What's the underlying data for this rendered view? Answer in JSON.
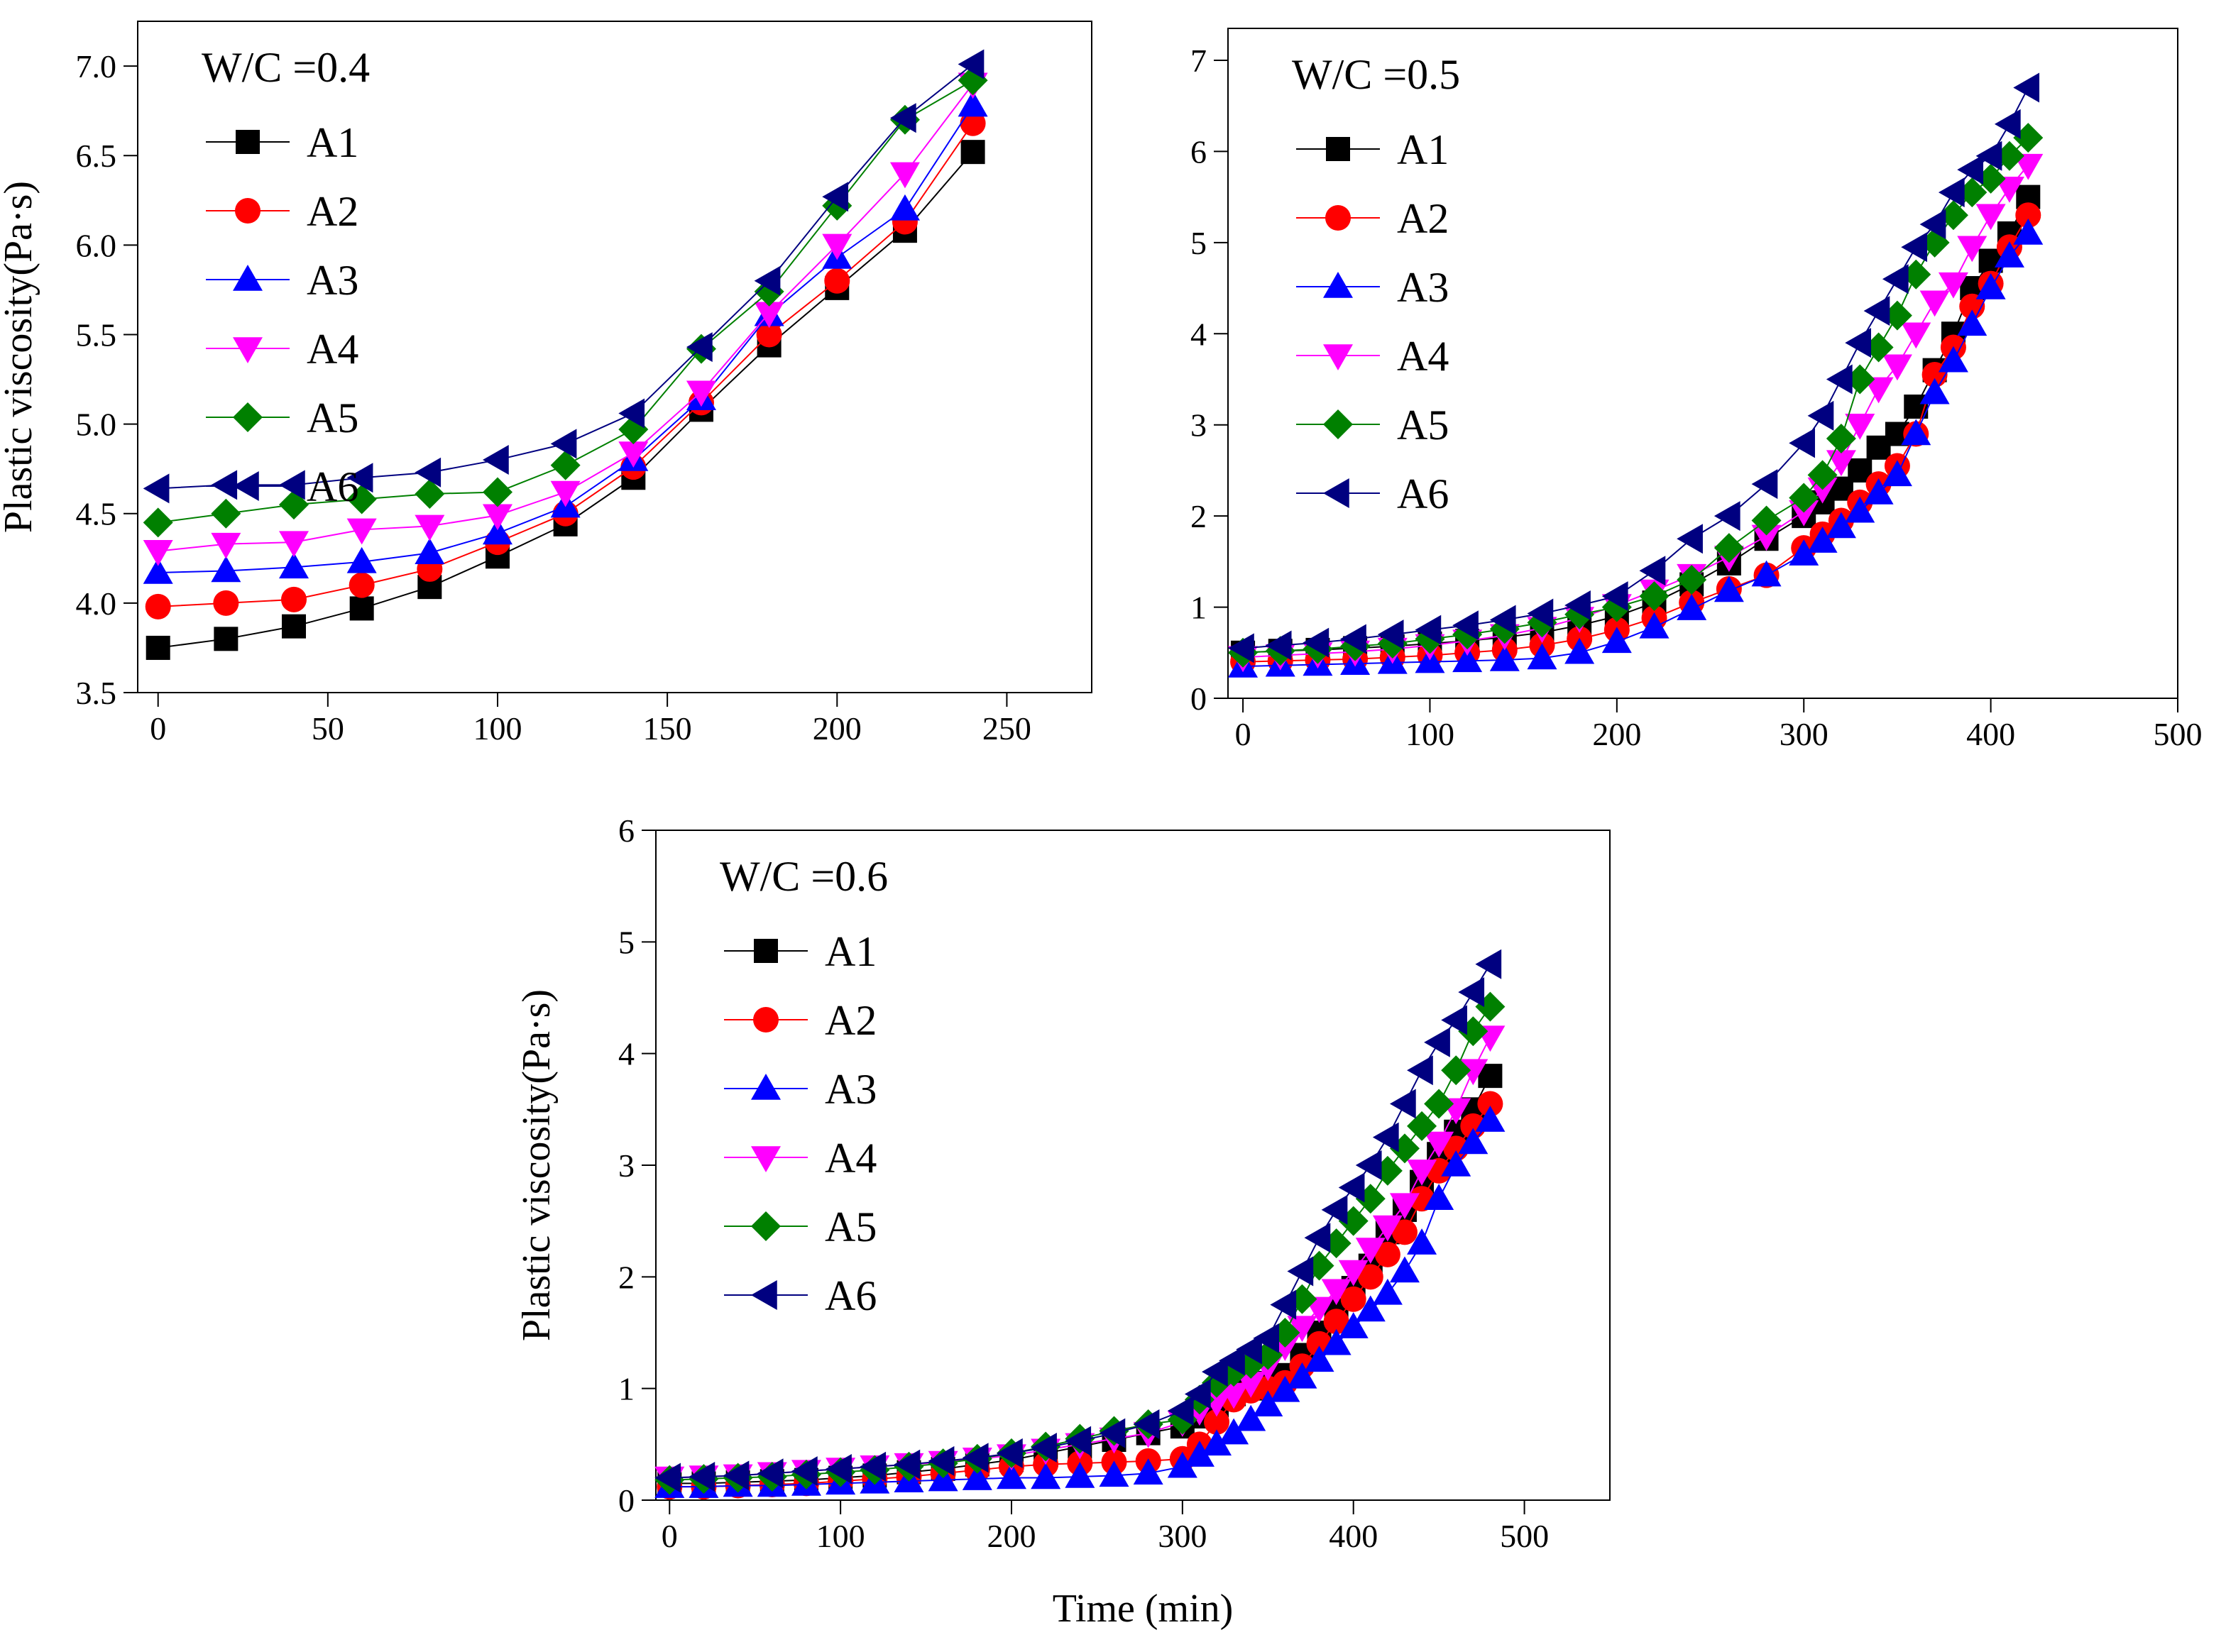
{
  "figure": {
    "shared_xlabel": "Time (min)"
  },
  "chart_data": [
    {
      "type": "line",
      "title": "W/C =0.4",
      "xlabel": "",
      "ylabel": "Plastic viscosity(Pa·s)",
      "xlim": [
        -6,
        275
      ],
      "ylim": [
        3.5,
        7.25
      ],
      "xticks": [
        0,
        50,
        100,
        150,
        200,
        250
      ],
      "yticks": [
        3.5,
        4.0,
        4.5,
        5.0,
        5.5,
        6.0,
        6.5,
        7.0
      ],
      "ytick_labels": [
        "3.5",
        "4.0",
        "4.5",
        "5.0",
        "5.5",
        "6.0",
        "6.5",
        "7.0"
      ],
      "legend_position": "top-left",
      "x": [
        0,
        20,
        40,
        60,
        80,
        100,
        120,
        140,
        160,
        180,
        200,
        220,
        240
      ],
      "series": [
        {
          "name": "A1",
          "color": "#000000",
          "marker": "square",
          "values": [
            3.75,
            3.8,
            3.87,
            3.97,
            4.09,
            4.26,
            4.44,
            4.7,
            5.08,
            5.44,
            5.76,
            6.08,
            6.52
          ]
        },
        {
          "name": "A2",
          "color": "#ff0000",
          "marker": "circle",
          "values": [
            3.98,
            4.0,
            4.02,
            4.1,
            4.19,
            4.34,
            4.5,
            4.76,
            5.12,
            5.5,
            5.8,
            6.13,
            6.68
          ]
        },
        {
          "name": "A3",
          "color": "#0000ff",
          "marker": "triangle-up",
          "values": [
            4.17,
            4.18,
            4.2,
            4.23,
            4.28,
            4.39,
            4.54,
            4.8,
            5.14,
            5.61,
            5.93,
            6.2,
            6.78
          ]
        },
        {
          "name": "A4",
          "color": "#ff00ff",
          "marker": "triangle-down",
          "values": [
            4.29,
            4.33,
            4.34,
            4.41,
            4.43,
            4.49,
            4.62,
            4.84,
            5.18,
            5.62,
            6.0,
            6.4,
            6.9
          ]
        },
        {
          "name": "A5",
          "color": "#008000",
          "marker": "diamond",
          "values": [
            4.45,
            4.5,
            4.55,
            4.58,
            4.61,
            4.62,
            4.77,
            4.97,
            5.42,
            5.74,
            6.22,
            6.7,
            6.92
          ]
        },
        {
          "name": "A6",
          "color": "#000080",
          "marker": "triangle-left",
          "values": [
            4.64,
            4.66,
            4.66,
            4.7,
            4.73,
            4.8,
            4.89,
            5.06,
            5.43,
            5.8,
            6.27,
            6.71,
            7.01
          ]
        }
      ]
    },
    {
      "type": "line",
      "title": "W/C =0.5",
      "xlabel": "",
      "ylabel": "",
      "xlim": [
        -8,
        500
      ],
      "ylim": [
        0,
        7.35
      ],
      "xticks": [
        0,
        100,
        200,
        300,
        400,
        500
      ],
      "yticks": [
        0,
        1,
        2,
        3,
        4,
        5,
        6,
        7
      ],
      "ytick_labels": [
        "0",
        "1",
        "2",
        "3",
        "4",
        "5",
        "6",
        "7"
      ],
      "legend_position": "top-left",
      "x": [
        0,
        20,
        40,
        60,
        80,
        100,
        120,
        140,
        160,
        180,
        200,
        220,
        240,
        260,
        280,
        300,
        310,
        320,
        330,
        340,
        350,
        360,
        370,
        380,
        390,
        400,
        410,
        420
      ],
      "series": [
        {
          "name": "A1",
          "color": "#000000",
          "marker": "square",
          "values": [
            0.5,
            0.52,
            0.53,
            0.55,
            0.57,
            0.6,
            0.63,
            0.67,
            0.72,
            0.8,
            0.9,
            1.05,
            1.25,
            1.48,
            1.75,
            2.0,
            2.15,
            2.3,
            2.5,
            2.75,
            2.9,
            3.2,
            3.6,
            4.0,
            4.5,
            4.8,
            5.1,
            5.5
          ]
        },
        {
          "name": "A2",
          "color": "#ff0000",
          "marker": "circle",
          "values": [
            0.4,
            0.41,
            0.42,
            0.43,
            0.45,
            0.47,
            0.5,
            0.53,
            0.58,
            0.65,
            0.75,
            0.88,
            1.05,
            1.2,
            1.35,
            1.65,
            1.8,
            1.95,
            2.15,
            2.35,
            2.55,
            2.9,
            3.55,
            3.85,
            4.3,
            4.55,
            4.95,
            5.3
          ]
        },
        {
          "name": "A3",
          "color": "#0000ff",
          "marker": "triangle-up",
          "values": [
            0.35,
            0.36,
            0.37,
            0.38,
            0.39,
            0.4,
            0.41,
            0.42,
            0.44,
            0.5,
            0.62,
            0.78,
            0.98,
            1.18,
            1.35,
            1.58,
            1.72,
            1.88,
            2.05,
            2.25,
            2.45,
            2.9,
            3.35,
            3.7,
            4.1,
            4.5,
            4.85,
            5.1
          ]
        },
        {
          "name": "A4",
          "color": "#ff00ff",
          "marker": "triangle-down",
          "values": [
            0.45,
            0.47,
            0.49,
            0.51,
            0.54,
            0.58,
            0.63,
            0.69,
            0.77,
            0.88,
            1.02,
            1.18,
            1.35,
            1.55,
            1.78,
            2.05,
            2.3,
            2.6,
            3.0,
            3.4,
            3.65,
            4.0,
            4.35,
            4.55,
            4.95,
            5.3,
            5.6,
            5.85
          ]
        },
        {
          "name": "A5",
          "color": "#008000",
          "marker": "diamond",
          "values": [
            0.5,
            0.52,
            0.54,
            0.57,
            0.6,
            0.65,
            0.7,
            0.76,
            0.83,
            0.92,
            1.0,
            1.12,
            1.3,
            1.65,
            1.95,
            2.2,
            2.45,
            2.85,
            3.5,
            3.85,
            4.2,
            4.65,
            5.0,
            5.3,
            5.55,
            5.7,
            5.95,
            6.15
          ]
        },
        {
          "name": "A6",
          "color": "#000080",
          "marker": "triangle-left",
          "values": [
            0.55,
            0.58,
            0.61,
            0.65,
            0.7,
            0.75,
            0.8,
            0.86,
            0.93,
            1.02,
            1.12,
            1.4,
            1.75,
            2.0,
            2.35,
            2.8,
            3.1,
            3.5,
            3.9,
            4.25,
            4.6,
            4.95,
            5.2,
            5.55,
            5.8,
            5.95,
            6.3,
            6.7
          ]
        }
      ]
    },
    {
      "type": "line",
      "title": "W/C =0.6",
      "xlabel": "Time (min)",
      "ylabel": "Plastic viscosity(Pa·s)",
      "xlim": [
        -8,
        550
      ],
      "ylim": [
        0,
        6
      ],
      "xticks": [
        0,
        100,
        200,
        300,
        400,
        500
      ],
      "yticks": [
        0,
        1,
        2,
        3,
        4,
        5,
        6
      ],
      "ytick_labels": [
        "0",
        "1",
        "2",
        "3",
        "4",
        "5",
        "6"
      ],
      "legend_position": "top-left",
      "x": [
        0,
        20,
        40,
        60,
        80,
        100,
        120,
        140,
        160,
        180,
        200,
        220,
        240,
        260,
        280,
        300,
        310,
        320,
        330,
        340,
        350,
        360,
        370,
        380,
        390,
        400,
        410,
        420,
        430,
        440,
        450,
        460,
        470,
        480
      ],
      "series": [
        {
          "name": "A1",
          "color": "#000000",
          "marker": "square",
          "values": [
            0.15,
            0.15,
            0.16,
            0.17,
            0.18,
            0.2,
            0.22,
            0.25,
            0.28,
            0.32,
            0.36,
            0.42,
            0.48,
            0.54,
            0.6,
            0.66,
            0.75,
            0.85,
            0.95,
            1.0,
            1.05,
            1.12,
            1.3,
            1.5,
            1.7,
            1.9,
            2.1,
            2.4,
            2.6,
            2.85,
            3.1,
            3.3,
            3.5,
            3.8
          ]
        },
        {
          "name": "A2",
          "color": "#ff0000",
          "marker": "circle",
          "values": [
            0.12,
            0.12,
            0.13,
            0.14,
            0.15,
            0.17,
            0.19,
            0.21,
            0.24,
            0.27,
            0.3,
            0.32,
            0.33,
            0.34,
            0.35,
            0.37,
            0.5,
            0.7,
            0.9,
            0.98,
            1.0,
            1.05,
            1.2,
            1.4,
            1.6,
            1.8,
            2.0,
            2.2,
            2.4,
            2.7,
            2.95,
            3.15,
            3.35,
            3.55
          ]
        },
        {
          "name": "A3",
          "color": "#0000ff",
          "marker": "triangle-up",
          "values": [
            0.12,
            0.12,
            0.13,
            0.13,
            0.14,
            0.15,
            0.16,
            0.17,
            0.18,
            0.19,
            0.2,
            0.2,
            0.21,
            0.22,
            0.24,
            0.3,
            0.4,
            0.5,
            0.6,
            0.72,
            0.85,
            0.98,
            1.1,
            1.25,
            1.4,
            1.55,
            1.7,
            1.85,
            2.05,
            2.3,
            2.7,
            3.0,
            3.2,
            3.4
          ]
        },
        {
          "name": "A4",
          "color": "#ff00ff",
          "marker": "triangle-down",
          "values": [
            0.2,
            0.21,
            0.22,
            0.24,
            0.26,
            0.28,
            0.3,
            0.32,
            0.34,
            0.37,
            0.4,
            0.45,
            0.5,
            0.55,
            0.6,
            0.7,
            0.8,
            0.88,
            0.95,
            1.05,
            1.2,
            1.38,
            1.55,
            1.72,
            1.88,
            2.05,
            2.25,
            2.45,
            2.65,
            2.95,
            3.2,
            3.5,
            3.85,
            4.15
          ]
        },
        {
          "name": "A5",
          "color": "#008000",
          "marker": "diamond",
          "values": [
            0.18,
            0.19,
            0.2,
            0.21,
            0.23,
            0.25,
            0.27,
            0.3,
            0.33,
            0.37,
            0.42,
            0.48,
            0.55,
            0.62,
            0.68,
            0.72,
            0.9,
            1.05,
            1.15,
            1.22,
            1.3,
            1.5,
            1.8,
            2.1,
            2.3,
            2.5,
            2.7,
            2.95,
            3.15,
            3.35,
            3.55,
            3.85,
            4.2,
            4.42
          ]
        },
        {
          "name": "A6",
          "color": "#000080",
          "marker": "triangle-left",
          "values": [
            0.2,
            0.21,
            0.22,
            0.24,
            0.26,
            0.28,
            0.3,
            0.32,
            0.35,
            0.38,
            0.42,
            0.47,
            0.53,
            0.6,
            0.68,
            0.8,
            0.95,
            1.15,
            1.25,
            1.35,
            1.45,
            1.75,
            2.05,
            2.35,
            2.6,
            2.8,
            3.0,
            3.25,
            3.55,
            3.85,
            4.1,
            4.3,
            4.55,
            4.8
          ]
        }
      ]
    }
  ]
}
